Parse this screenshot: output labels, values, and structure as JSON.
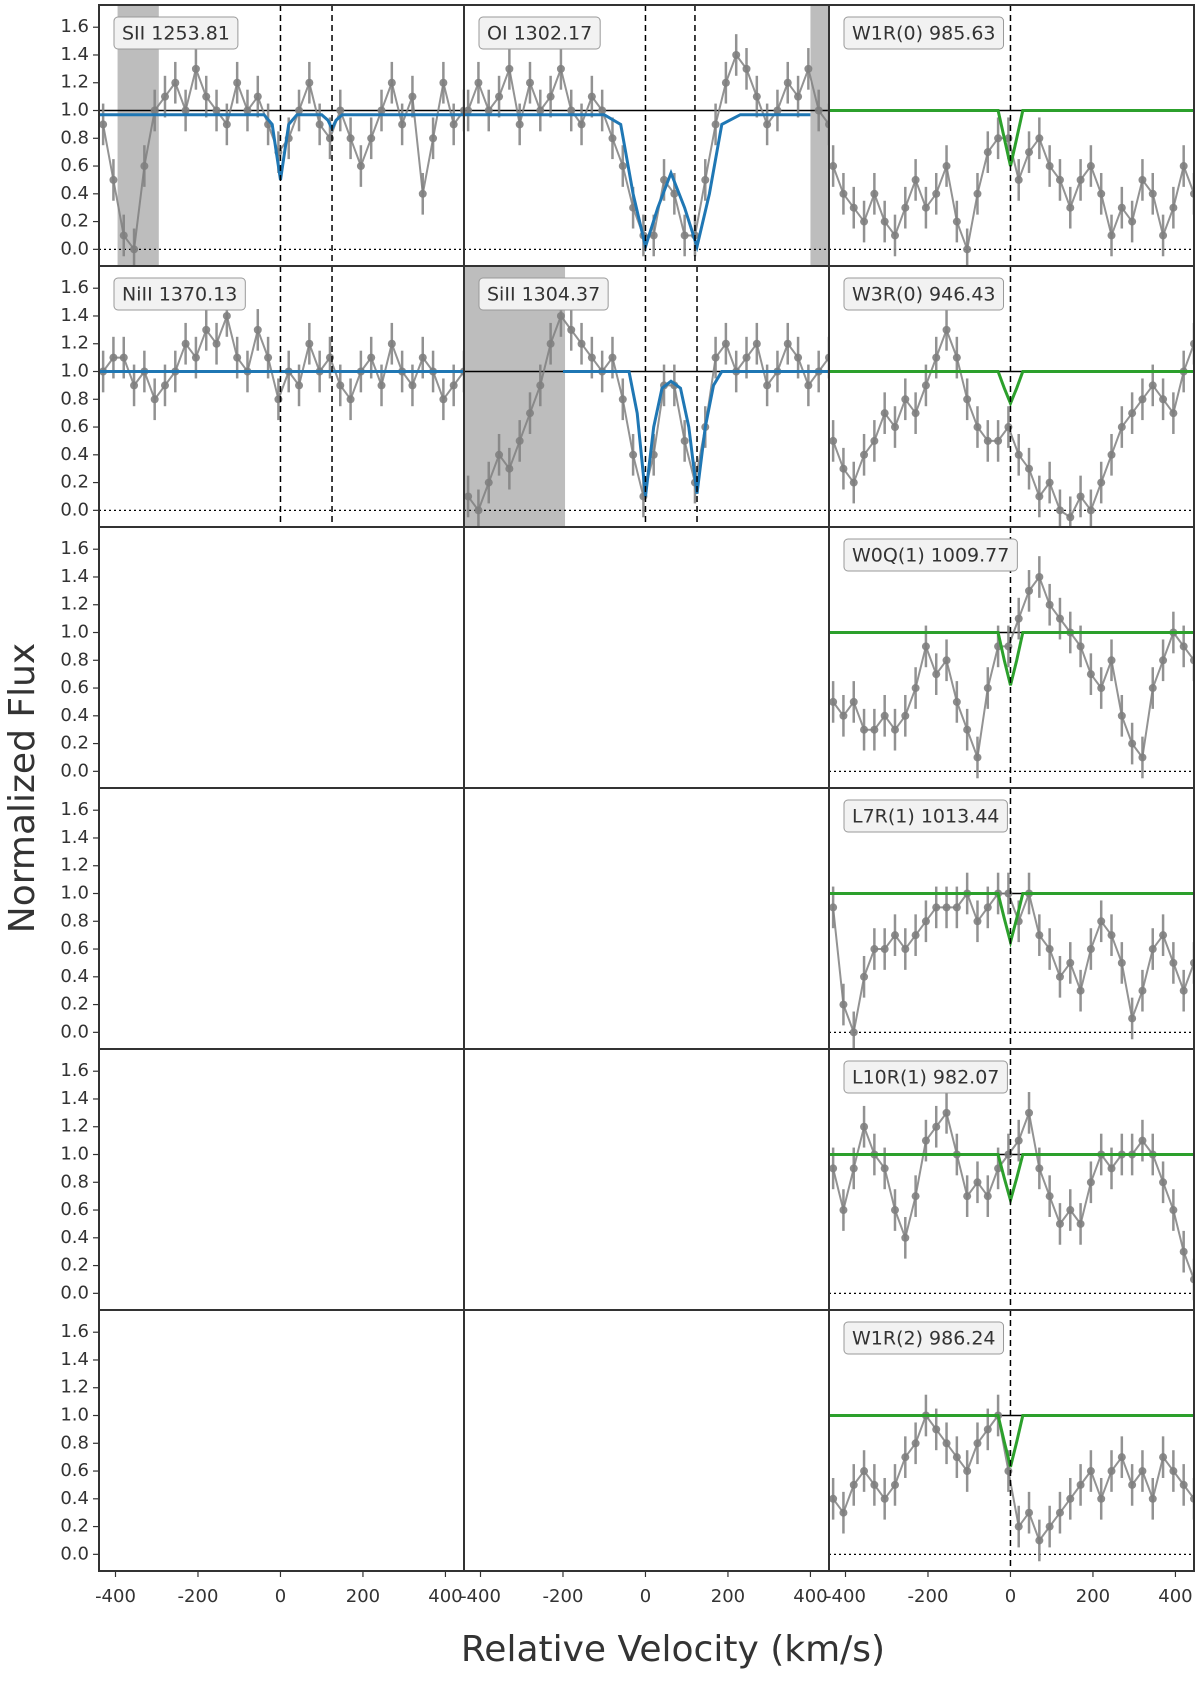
{
  "figure": {
    "xlabel": "Relative Velocity (km/s)",
    "ylabel": "Normalized Flux",
    "xlim": [
      -440,
      445
    ],
    "xticks": [
      -400,
      -200,
      0,
      200,
      400
    ],
    "ylim": [
      -0.12,
      1.76
    ],
    "yticks": [
      {
        "value": 0,
        "label": "0.0"
      },
      {
        "value": 0.2,
        "label": "0.2"
      },
      {
        "value": 0.4,
        "label": "0.4"
      },
      {
        "value": 0.6,
        "label": "0.6"
      },
      {
        "value": 0.8,
        "label": "0.8"
      },
      {
        "value": 1.0,
        "label": "1.0"
      },
      {
        "value": 1.2,
        "label": "1.2"
      },
      {
        "value": 1.4,
        "label": "1.4"
      },
      {
        "value": 1.6,
        "label": "1.6"
      }
    ],
    "velocity": [
      -430,
      -405,
      -380,
      -355,
      -330,
      -305,
      -280,
      -255,
      -230,
      -205,
      -180,
      -155,
      -130,
      -105,
      -80,
      -55,
      -30,
      -5,
      20,
      45,
      70,
      95,
      120,
      145,
      170,
      195,
      220,
      245,
      270,
      295,
      320,
      345,
      370,
      395,
      420,
      445
    ],
    "continuum": 1.0,
    "zero": 0.0,
    "data_color": "#808080"
  },
  "chart_data": [
    {
      "type": "line",
      "title": "SII 1253.81",
      "error": 0.15,
      "values": [
        0.9,
        0.5,
        0.1,
        0.0,
        0.6,
        1.0,
        1.1,
        1.2,
        1.0,
        1.3,
        1.1,
        1.0,
        0.9,
        1.2,
        1.0,
        1.1,
        0.9,
        0.7,
        0.8,
        1.0,
        1.2,
        0.9,
        0.8,
        1.0,
        0.8,
        0.6,
        0.8,
        1.0,
        1.2,
        0.9,
        1.1,
        0.4,
        0.8,
        1.2,
        0.9,
        1.0
      ],
      "model": {
        "color": "#1f77b4",
        "x": [
          -440,
          -40,
          -20,
          -10,
          0,
          10,
          20,
          40,
          100,
          115,
          125,
          135,
          150,
          445
        ],
        "values": [
          0.97,
          0.97,
          0.9,
          0.7,
          0.5,
          0.7,
          0.9,
          0.97,
          0.97,
          0.93,
          0.87,
          0.93,
          0.97,
          0.97
        ]
      },
      "vlines": [
        0,
        125
      ],
      "masks": [
        [
          -395,
          -295
        ]
      ]
    },
    {
      "type": "line",
      "title": "OI 1302.17",
      "error": 0.15,
      "values": [
        1.0,
        1.2,
        1.0,
        1.1,
        1.3,
        0.9,
        1.2,
        1.0,
        1.1,
        1.3,
        1.0,
        0.9,
        1.1,
        1.0,
        0.8,
        0.6,
        0.3,
        0.1,
        0.1,
        0.5,
        0.4,
        0.1,
        0.1,
        0.5,
        0.9,
        1.2,
        1.4,
        1.3,
        1.1,
        0.9,
        1.0,
        1.2,
        1.1,
        1.3,
        1.0,
        0.9
      ],
      "model": {
        "color": "#1f77b4",
        "x": [
          -440,
          -100,
          -60,
          -30,
          0,
          30,
          62,
          95,
          125,
          155,
          185,
          230,
          400
        ],
        "values": [
          0.97,
          0.97,
          0.9,
          0.4,
          0.02,
          0.3,
          0.55,
          0.3,
          0.02,
          0.4,
          0.9,
          0.97,
          0.97
        ]
      },
      "vlines": [
        0,
        120
      ],
      "masks": [
        [
          400,
          445
        ]
      ]
    },
    {
      "type": "line",
      "title": "W1R(0) 985.63",
      "error": 0.15,
      "values": [
        0.6,
        0.4,
        0.3,
        0.2,
        0.4,
        0.2,
        0.1,
        0.3,
        0.5,
        0.3,
        0.4,
        0.6,
        0.2,
        0.0,
        0.4,
        0.7,
        0.8,
        0.8,
        0.5,
        0.7,
        0.8,
        0.6,
        0.5,
        0.3,
        0.5,
        0.6,
        0.4,
        0.1,
        0.3,
        0.2,
        0.5,
        0.4,
        0.1,
        0.3,
        0.6,
        0.4
      ],
      "model": {
        "color": "#2ca02c",
        "x": [
          -440,
          -30,
          -15,
          0,
          15,
          30,
          445
        ],
        "values": [
          1.0,
          1.0,
          0.8,
          0.6,
          0.8,
          1.0,
          1.0
        ]
      },
      "vlines": [
        0
      ],
      "masks": []
    },
    {
      "type": "line",
      "title": "NiII 1370.13",
      "error": 0.15,
      "values": [
        1.0,
        1.1,
        1.1,
        0.9,
        1.0,
        0.8,
        0.9,
        1.0,
        1.2,
        1.1,
        1.3,
        1.2,
        1.4,
        1.1,
        1.0,
        1.3,
        1.1,
        0.8,
        1.0,
        0.9,
        1.2,
        1.0,
        1.1,
        0.9,
        0.8,
        1.0,
        1.1,
        0.9,
        1.2,
        1.0,
        0.9,
        1.1,
        1.0,
        0.8,
        0.9,
        1.0
      ],
      "model": {
        "color": "#1f77b4",
        "x": [
          -440,
          445
        ],
        "values": [
          1.0,
          1.0
        ]
      },
      "vlines": [
        0,
        125
      ],
      "masks": []
    },
    {
      "type": "line",
      "title": "SiII 1304.37",
      "error": 0.15,
      "values": [
        0.1,
        0.0,
        0.2,
        0.4,
        0.3,
        0.5,
        0.7,
        0.9,
        1.2,
        1.4,
        1.3,
        1.2,
        1.1,
        1.0,
        1.1,
        0.8,
        0.4,
        0.1,
        0.4,
        0.9,
        0.9,
        0.5,
        0.2,
        0.6,
        1.1,
        1.2,
        1.0,
        1.1,
        1.2,
        0.9,
        1.0,
        1.2,
        1.1,
        0.9,
        1.0,
        1.1
      ],
      "model": {
        "color": "#1f77b4",
        "x": [
          -200,
          -40,
          -20,
          0,
          20,
          40,
          62,
          85,
          105,
          125,
          145,
          165,
          185,
          445
        ],
        "values": [
          1.0,
          1.0,
          0.7,
          0.1,
          0.6,
          0.88,
          0.93,
          0.88,
          0.6,
          0.12,
          0.6,
          0.9,
          1.0,
          1.0
        ]
      },
      "vlines": [
        0,
        125
      ],
      "masks": [
        [
          -440,
          -195
        ]
      ]
    },
    {
      "type": "line",
      "title": "W3R(0) 946.43",
      "error": 0.15,
      "values": [
        0.5,
        0.3,
        0.2,
        0.4,
        0.5,
        0.7,
        0.6,
        0.8,
        0.7,
        0.9,
        1.1,
        1.3,
        1.1,
        0.8,
        0.6,
        0.5,
        0.5,
        0.6,
        0.4,
        0.3,
        0.1,
        0.2,
        0.0,
        -0.05,
        0.1,
        0.0,
        0.2,
        0.4,
        0.6,
        0.7,
        0.8,
        0.9,
        0.8,
        0.7,
        1.0,
        1.2
      ],
      "model": {
        "color": "#2ca02c",
        "x": [
          -440,
          -30,
          -15,
          0,
          15,
          30,
          445
        ],
        "values": [
          1.0,
          1.0,
          0.88,
          0.77,
          0.88,
          1.0,
          1.0
        ]
      },
      "vlines": [
        0
      ],
      "masks": []
    },
    {
      "type": "line",
      "title": "W0Q(1) 1009.77",
      "error": 0.15,
      "values": [
        0.5,
        0.4,
        0.5,
        0.3,
        0.3,
        0.4,
        0.3,
        0.4,
        0.6,
        0.9,
        0.7,
        0.8,
        0.5,
        0.3,
        0.1,
        0.6,
        0.9,
        0.9,
        1.1,
        1.3,
        1.4,
        1.2,
        1.1,
        1.0,
        0.9,
        0.7,
        0.6,
        0.8,
        0.4,
        0.2,
        0.1,
        0.6,
        0.8,
        1.0,
        0.9,
        0.8
      ],
      "model": {
        "color": "#2ca02c",
        "x": [
          -440,
          -30,
          -15,
          0,
          15,
          30,
          445
        ],
        "values": [
          1.0,
          1.0,
          0.8,
          0.62,
          0.8,
          1.0,
          1.0
        ]
      },
      "vlines": [
        0
      ],
      "masks": []
    },
    {
      "type": "line",
      "title": "L7R(1) 1013.44",
      "error": 0.15,
      "values": [
        0.9,
        0.2,
        0.0,
        0.4,
        0.6,
        0.6,
        0.7,
        0.6,
        0.7,
        0.8,
        0.9,
        0.9,
        0.9,
        1.0,
        0.8,
        0.9,
        1.0,
        1.0,
        0.8,
        1.0,
        0.7,
        0.6,
        0.4,
        0.5,
        0.3,
        0.6,
        0.8,
        0.7,
        0.5,
        0.1,
        0.3,
        0.6,
        0.7,
        0.5,
        0.3,
        0.5
      ],
      "model": {
        "color": "#2ca02c",
        "x": [
          -440,
          -30,
          -15,
          0,
          15,
          30,
          445
        ],
        "values": [
          1.0,
          1.0,
          0.82,
          0.65,
          0.82,
          1.0,
          1.0
        ]
      },
      "vlines": [
        0
      ],
      "masks": []
    },
    {
      "type": "line",
      "title": "L10R(1) 982.07",
      "error": 0.15,
      "values": [
        0.9,
        0.6,
        0.9,
        1.2,
        1.0,
        0.9,
        0.6,
        0.4,
        0.7,
        1.1,
        1.2,
        1.3,
        1.0,
        0.7,
        0.8,
        0.7,
        0.9,
        1.0,
        1.1,
        1.3,
        0.9,
        0.7,
        0.5,
        0.6,
        0.5,
        0.8,
        1.0,
        0.9,
        1.0,
        1.0,
        1.1,
        1.0,
        0.8,
        0.6,
        0.3,
        0.1
      ],
      "model": {
        "color": "#2ca02c",
        "x": [
          -440,
          -30,
          -15,
          0,
          15,
          30,
          445
        ],
        "values": [
          1.0,
          1.0,
          0.83,
          0.67,
          0.83,
          1.0,
          1.0
        ]
      },
      "vlines": [
        0
      ],
      "masks": []
    },
    {
      "type": "line",
      "title": "W1R(2) 986.24",
      "error": 0.15,
      "values": [
        0.4,
        0.3,
        0.5,
        0.6,
        0.5,
        0.4,
        0.5,
        0.7,
        0.8,
        1.0,
        0.9,
        0.8,
        0.7,
        0.6,
        0.8,
        0.9,
        1.0,
        0.6,
        0.2,
        0.3,
        0.1,
        0.2,
        0.3,
        0.4,
        0.5,
        0.6,
        0.4,
        0.6,
        0.7,
        0.5,
        0.6,
        0.4,
        0.7,
        0.6,
        0.5,
        0.4
      ],
      "model": {
        "color": "#2ca02c",
        "x": [
          -440,
          -30,
          -15,
          0,
          15,
          30,
          445
        ],
        "values": [
          1.0,
          1.0,
          0.81,
          0.63,
          0.81,
          1.0,
          1.0
        ]
      },
      "vlines": [
        0
      ],
      "masks": []
    }
  ]
}
